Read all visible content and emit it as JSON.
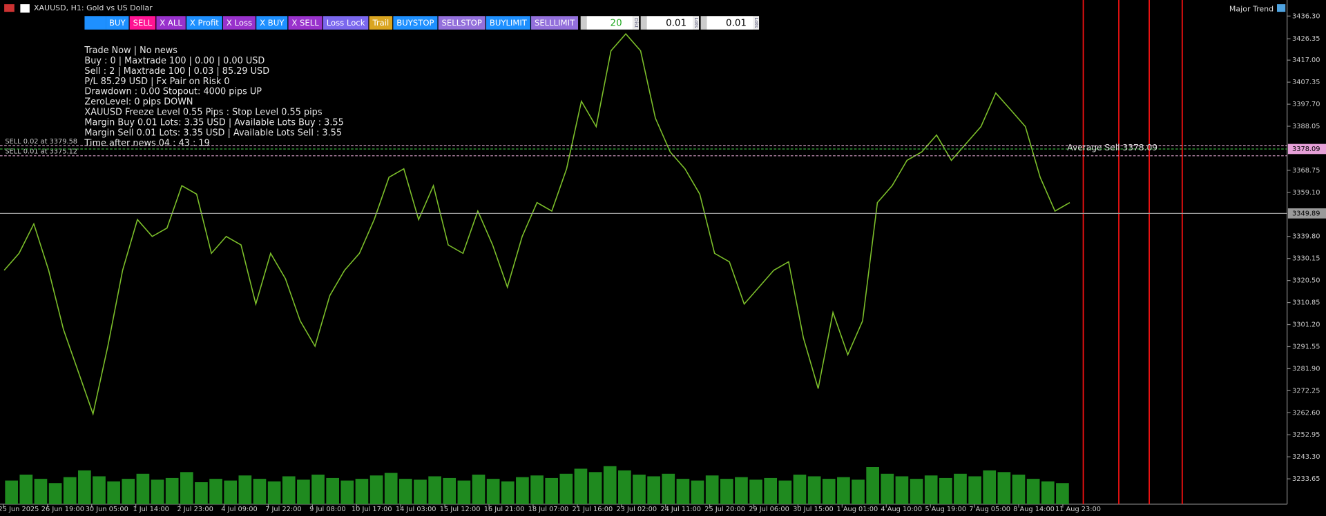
{
  "header": {
    "symbol": "XAUUSD, H1:  Gold vs US Dollar",
    "indicator": "Major Trend"
  },
  "toolbar": {
    "buttons": [
      {
        "label": "BUY",
        "color": "#1e90ff"
      },
      {
        "label": "SELL",
        "color": "#ff1493"
      },
      {
        "label": "X ALL",
        "color": "#9932cc"
      },
      {
        "label": "X Profit",
        "color": "#1e90ff"
      },
      {
        "label": "X Loss",
        "color": "#9932cc"
      },
      {
        "label": "X BUY",
        "color": "#1e90ff"
      },
      {
        "label": "X SELL",
        "color": "#9932cc"
      },
      {
        "label": "Loss Lock",
        "color": "#7b68ee"
      },
      {
        "label": "Trail",
        "color": "#daa520"
      },
      {
        "label": "BUYSTOP",
        "color": "#1e90ff"
      },
      {
        "label": "SELLSTOP",
        "color": "#9370db"
      },
      {
        "label": "BUYLIMIT",
        "color": "#1e90ff"
      },
      {
        "label": "SELLLIMIT",
        "color": "#9370db"
      }
    ],
    "inputs": [
      {
        "value": "20",
        "caption": "Dist"
      },
      {
        "value": "0.01",
        "caption": "Lots"
      },
      {
        "value": "0.01",
        "caption": "Lots"
      }
    ]
  },
  "info": [
    "Trade Now | No news",
    "Buy : 0 | Maxtrade 100 | 0.00 | 0.00 USD",
    "Sell : 2 | Maxtrade 100 | 0.03 | 85.29 USD",
    "P/L 85.29 USD | Fx Pair on Risk 0",
    "Drawdown : 0.00 Stopout: 4000 pips UP",
    "ZeroLevel: 0 pips DOWN",
    "XAUUSD Freeze Level  0.55 Pips : Stop Level 0.55 pips",
    "Margin Buy 0.01 Lots: 3.35 USD | Available Lots Buy : 3.55",
    "Margin Sell 0.01 Lots: 3.35 USD | Available Lots Sell : 3.55",
    "Time after news 04 : 43 : 19"
  ],
  "chart": {
    "ylim": [
      3222.56,
      3443.33
    ],
    "yticks": [
      {
        "value": 3436.3,
        "label": "3436.30"
      },
      3426.35,
      {
        "value": 3417.0,
        "label": "3417.00"
      },
      3407.35,
      {
        "value": 3397.7,
        "label": "3397.70"
      },
      3388.05,
      3368.75,
      {
        "value": 3359.1,
        "label": "3359.10"
      },
      {
        "value": 3339.8,
        "label": "3339.80"
      },
      3330.15,
      {
        "value": 3320.5,
        "label": "3320.50"
      },
      3310.85,
      {
        "value": 3301.2,
        "label": "3301.20"
      },
      3291.55,
      {
        "value": 3281.9,
        "label": "3281.90"
      },
      3272.25,
      {
        "value": 3262.6,
        "label": "3262.60"
      },
      3252.95,
      {
        "value": 3243.3,
        "label": "3243.30"
      },
      3233.65
    ],
    "xlabels": [
      "25 Jun 2025",
      "26 Jun 19:00",
      "30 Jun 05:00",
      "1 Jul 14:00",
      "2 Jul 23:00",
      "4 Jul 09:00",
      "7 Jul 22:00",
      "9 Jul 08:00",
      "10 Jul 17:00",
      "14 Jul 03:00",
      "15 Jul 12:00",
      "16 Jul 21:00",
      "18 Jul 07:00",
      "21 Jul 16:00",
      "23 Jul 02:00",
      "24 Jul 11:00",
      "25 Jul 20:00",
      "29 Jul 06:00",
      "30 Jul 15:00",
      "1 Aug 01:00",
      "4 Aug 10:00",
      "5 Aug 19:00",
      "7 Aug 05:00",
      "8 Aug 14:00",
      "11 Aug 23:00"
    ],
    "price": {
      "color": "#7cbf2a",
      "values": [
        3325.0,
        3332.4,
        3345.3,
        3325.0,
        3299.1,
        3280.6,
        3262.1,
        3291.7,
        3325.0,
        3347.2,
        3339.8,
        3343.5,
        3362.0,
        3358.3,
        3332.4,
        3339.8,
        3336.1,
        3310.2,
        3332.4,
        3321.3,
        3302.8,
        3291.7,
        3313.9,
        3325.0,
        3332.4,
        3347.2,
        3365.7,
        3369.4,
        3347.2,
        3362.0,
        3336.1,
        3332.4,
        3350.9,
        3336.1,
        3317.6,
        3339.8,
        3354.6,
        3350.9,
        3369.4,
        3399.0,
        3387.9,
        3421.1,
        3428.5,
        3421.1,
        3391.6,
        3376.8,
        3369.4,
        3358.3,
        3332.4,
        3328.7,
        3310.2,
        3317.6,
        3325.0,
        3328.7,
        3295.4,
        3273.2,
        3306.5,
        3288.0,
        3302.8,
        3354.6,
        3362.0,
        3373.1,
        3376.8,
        3384.2,
        3373.1,
        3380.5,
        3387.9,
        3402.6,
        3395.3,
        3387.9,
        3365.7,
        3350.9,
        3354.6
      ]
    },
    "volume": {
      "color": "#1f8a1f",
      "values": [
        28,
        35,
        30,
        25,
        32,
        40,
        33,
        27,
        30,
        36,
        29,
        31,
        38,
        26,
        30,
        28,
        34,
        30,
        27,
        33,
        29,
        35,
        31,
        28,
        30,
        34,
        37,
        30,
        29,
        33,
        31,
        28,
        35,
        30,
        27,
        32,
        34,
        31,
        36,
        42,
        38,
        45,
        40,
        35,
        33,
        36,
        30,
        28,
        34,
        30,
        32,
        29,
        31,
        28,
        35,
        33,
        30,
        32,
        29,
        44,
        36,
        33,
        30,
        34,
        31,
        36,
        33,
        40,
        38,
        35,
        30,
        27,
        25
      ]
    },
    "lines": [
      {
        "price": 3379.58,
        "label": "SELL 0.02 at 3379.58",
        "color": "#d8a0c8"
      },
      {
        "price": 3375.12,
        "label": "SELL 0.01 at 3375.12",
        "color": "#d8a0c8"
      }
    ],
    "average": {
      "price": 3378.09,
      "label": "Average Sell 3378.09",
      "axis_label": "3378.09",
      "color": "#3cb043"
    },
    "current": {
      "price": 3349.89,
      "label": "3349.89",
      "color": "#9a9a9a"
    }
  }
}
